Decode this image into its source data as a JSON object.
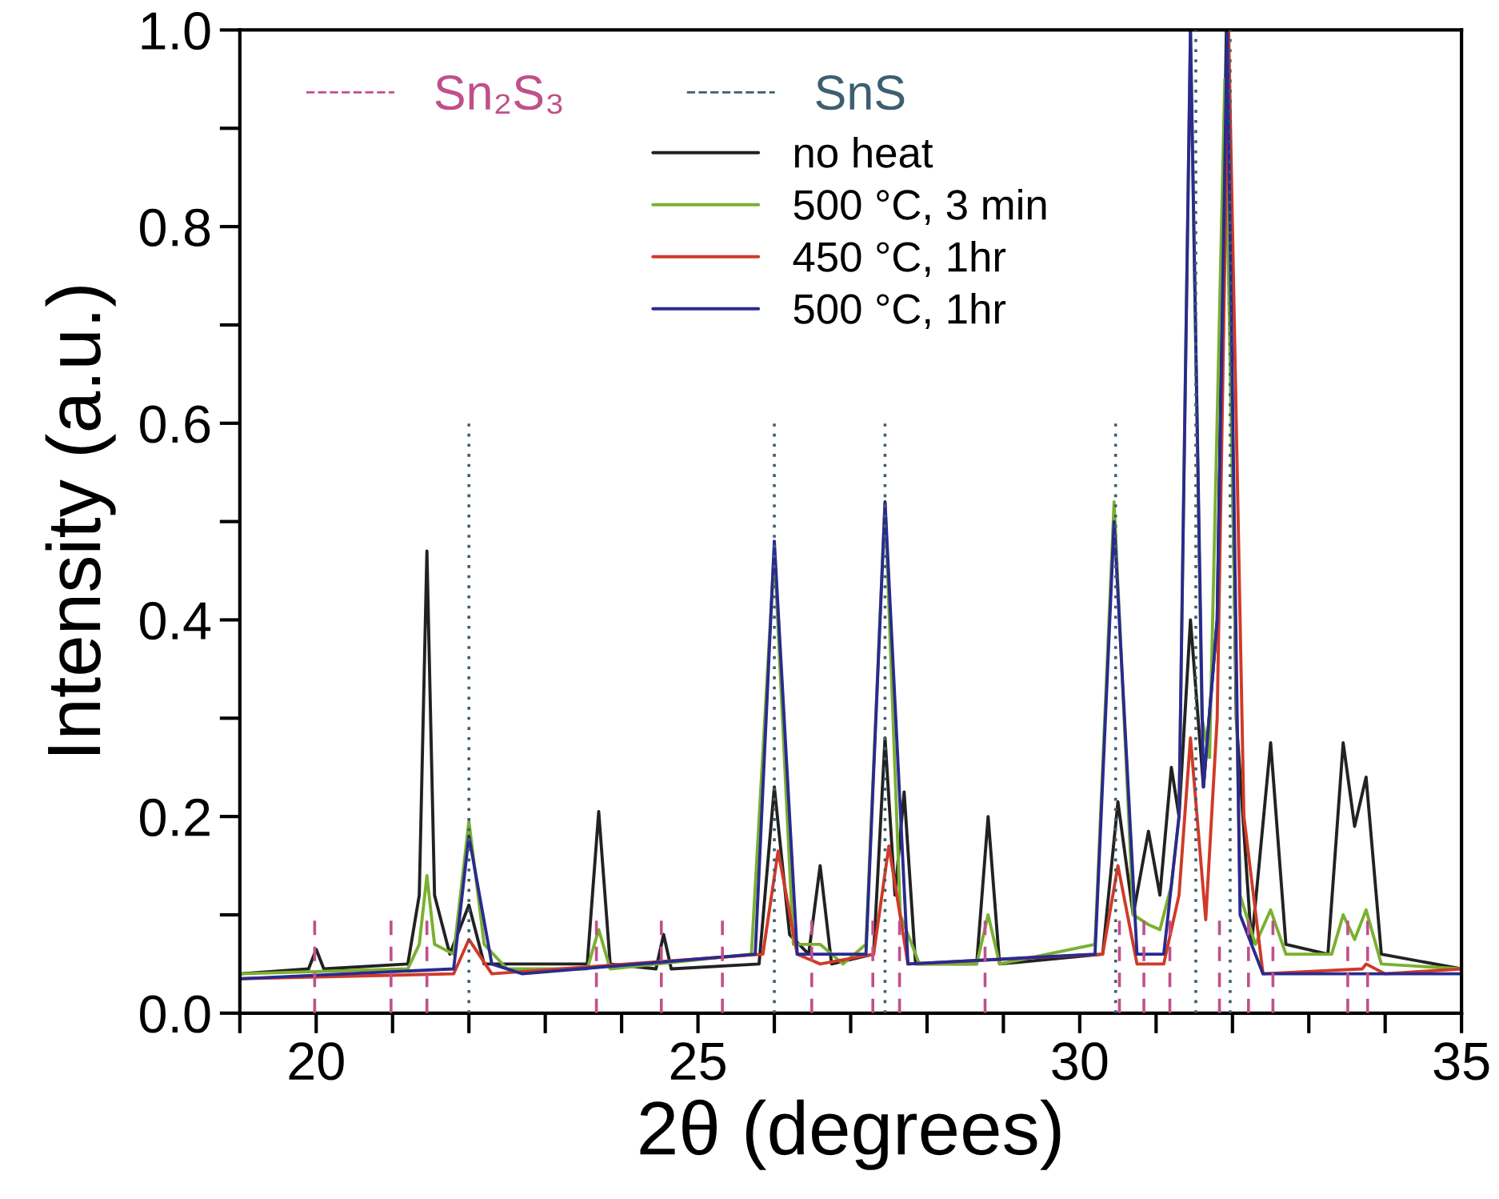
{
  "chart_data": {
    "type": "line",
    "xlabel": "2θ (degrees)",
    "ylabel": "Intensity (a.u.)",
    "xlim": [
      19,
      35
    ],
    "ylim": [
      0,
      1.0
    ],
    "xticks": [
      {
        "value": 19,
        "label": null
      },
      20,
      {
        "value": 21,
        "label": null
      },
      {
        "value": 22,
        "label": null
      },
      {
        "value": 23,
        "label": null
      },
      {
        "value": 24,
        "label": null
      },
      25,
      {
        "value": 26,
        "label": null
      },
      {
        "value": 27,
        "label": null
      },
      {
        "value": 28,
        "label": null
      },
      {
        "value": 29,
        "label": null
      },
      30,
      {
        "value": 31,
        "label": null
      },
      {
        "value": 32,
        "label": null
      },
      {
        "value": 33,
        "label": null
      },
      {
        "value": 34,
        "label": null
      },
      35
    ],
    "yticks": [
      {
        "value": 0,
        "label": "0.0"
      },
      {
        "value": 0.1,
        "label": null
      },
      {
        "value": 0.2,
        "label": "0.2"
      },
      {
        "value": 0.3,
        "label": null
      },
      {
        "value": 0.4,
        "label": "0.4"
      },
      {
        "value": 0.5,
        "label": null
      },
      {
        "value": 0.6,
        "label": "0.6"
      },
      {
        "value": 0.7,
        "label": null
      },
      {
        "value": 0.8,
        "label": "0.8"
      },
      {
        "value": 0.9,
        "label": null
      },
      {
        "value": 1.0,
        "label": "1.0"
      }
    ],
    "grid": false,
    "legend": "top",
    "marker": "none",
    "series": [
      {
        "name": "Sn₂S₃",
        "color": "#c0508a",
        "line_style": "dashed",
        "x": [
          19.98,
          19.98,
          null,
          20.98,
          20.98,
          null,
          21.45,
          21.45,
          null,
          23.67,
          23.67,
          null,
          24.52,
          24.52,
          null,
          25.32,
          25.32,
          null,
          26.49,
          26.49,
          null,
          27.29,
          27.29,
          null,
          27.64,
          27.64,
          null,
          28.76,
          28.76,
          null,
          30.52,
          30.52,
          null,
          30.84,
          30.84,
          null,
          31.18,
          31.18,
          null,
          31.83,
          31.83,
          null,
          32.21,
          32.21,
          null,
          32.53,
          32.53,
          null,
          33.51,
          33.51,
          null,
          33.77,
          33.77
        ],
        "values": [
          0,
          0.1,
          null,
          0,
          0.1,
          null,
          0,
          0.1,
          null,
          0,
          0.1,
          null,
          0,
          0.1,
          null,
          0,
          0.1,
          null,
          0,
          0.1,
          null,
          0,
          0.1,
          null,
          0,
          0.1,
          null,
          0,
          0.1,
          null,
          0,
          0.1,
          null,
          0,
          0.1,
          null,
          0,
          0.1,
          null,
          0,
          0.1,
          null,
          0,
          0.1,
          null,
          0,
          0.1,
          null,
          0,
          0.1,
          null,
          0,
          0.1
        ]
      },
      {
        "name": "SnS",
        "color": "#3d5f70",
        "line_style": "dotted",
        "x": [
          22.0,
          22.0,
          null,
          26.0,
          26.0,
          null,
          27.45,
          27.45,
          null,
          30.47,
          30.47,
          null,
          31.52,
          31.52,
          null,
          31.97,
          31.97
        ],
        "values": [
          0,
          0.6,
          null,
          0,
          0.6,
          null,
          0,
          0.6,
          null,
          0,
          0.6,
          null,
          0,
          1.0,
          null,
          0,
          1.0
        ]
      },
      {
        "name": "no heat",
        "color": "#222222",
        "line_style": "solid",
        "x": [
          19,
          19.9,
          20.0,
          20.1,
          21.2,
          21.35,
          21.45,
          21.55,
          21.75,
          22.0,
          22.2,
          23.55,
          23.7,
          23.85,
          24.45,
          24.55,
          24.65,
          25.8,
          26.0,
          26.2,
          26.45,
          26.6,
          26.75,
          27.3,
          27.45,
          27.58,
          27.7,
          27.85,
          28.65,
          28.8,
          28.95,
          30.3,
          30.5,
          30.7,
          30.9,
          31.05,
          31.2,
          31.3,
          31.45,
          31.62,
          31.8,
          31.92,
          32.05,
          32.25,
          32.5,
          32.7,
          33.25,
          33.45,
          33.6,
          33.75,
          33.95,
          35
        ],
        "values": [
          0.04,
          0.045,
          0.065,
          0.045,
          0.05,
          0.12,
          0.47,
          0.12,
          0.06,
          0.11,
          0.05,
          0.05,
          0.205,
          0.05,
          0.045,
          0.08,
          0.045,
          0.05,
          0.23,
          0.08,
          0.06,
          0.15,
          0.05,
          0.06,
          0.28,
          0.12,
          0.225,
          0.05,
          0.05,
          0.2,
          0.05,
          0.06,
          0.215,
          0.1,
          0.185,
          0.12,
          0.25,
          0.2,
          0.4,
          0.23,
          0.4,
          1.0,
          0.3,
          0.07,
          0.275,
          0.07,
          0.06,
          0.275,
          0.19,
          0.24,
          0.06,
          0.045
        ]
      },
      {
        "name": "500 °C, 3 min",
        "color": "#7ab030",
        "line_style": "solid",
        "x": [
          19,
          21.2,
          21.35,
          21.45,
          21.55,
          21.8,
          22.0,
          22.2,
          22.5,
          23.55,
          23.7,
          23.85,
          25.7,
          26.0,
          26.25,
          26.6,
          26.9,
          27.2,
          27.45,
          27.65,
          27.9,
          28.65,
          28.8,
          28.95,
          30.2,
          30.45,
          30.7,
          30.9,
          31.05,
          31.2,
          31.3,
          31.45,
          31.6,
          31.7,
          31.9,
          32.1,
          32.3,
          32.5,
          32.7,
          33.3,
          33.45,
          33.6,
          33.75,
          33.95,
          35
        ],
        "values": [
          0.04,
          0.045,
          0.07,
          0.14,
          0.07,
          0.06,
          0.195,
          0.07,
          0.045,
          0.045,
          0.085,
          0.045,
          0.06,
          0.47,
          0.07,
          0.07,
          0.05,
          0.07,
          0.52,
          0.1,
          0.05,
          0.05,
          0.1,
          0.05,
          0.07,
          0.52,
          0.1,
          0.09,
          0.085,
          0.13,
          0.2,
          1.0,
          0.3,
          0.26,
          0.95,
          0.12,
          0.07,
          0.105,
          0.06,
          0.06,
          0.1,
          0.075,
          0.105,
          0.05,
          0.045
        ]
      },
      {
        "name": "450 °C, 1hr",
        "color": "#d03a28",
        "line_style": "solid",
        "x": [
          19,
          21.8,
          22.0,
          22.3,
          25.85,
          26.05,
          26.3,
          26.6,
          27.3,
          27.5,
          27.75,
          30.3,
          30.5,
          30.75,
          31.1,
          31.3,
          31.45,
          31.65,
          31.8,
          31.95,
          32.15,
          32.4,
          33.7,
          33.75,
          34,
          35
        ],
        "values": [
          0.035,
          0.04,
          0.075,
          0.04,
          0.06,
          0.165,
          0.06,
          0.05,
          0.06,
          0.17,
          0.05,
          0.06,
          0.15,
          0.05,
          0.05,
          0.12,
          0.28,
          0.095,
          0.3,
          1.0,
          0.2,
          0.04,
          0.045,
          0.05,
          0.04,
          0.045
        ]
      },
      {
        "name": "500 °C, 1hr",
        "color": "#2a2a90",
        "line_style": "solid",
        "x": [
          19,
          21.8,
          22.0,
          22.3,
          22.7,
          25.75,
          26.0,
          26.3,
          27.2,
          27.45,
          27.75,
          30.2,
          30.45,
          30.75,
          31.1,
          31.3,
          31.45,
          31.62,
          31.8,
          31.93,
          32.1,
          32.4,
          35
        ],
        "values": [
          0.035,
          0.045,
          0.18,
          0.05,
          0.04,
          0.06,
          0.48,
          0.06,
          0.06,
          0.52,
          0.05,
          0.06,
          0.5,
          0.06,
          0.06,
          0.2,
          1.0,
          0.23,
          0.4,
          1.0,
          0.1,
          0.04,
          0.04
        ]
      }
    ]
  }
}
